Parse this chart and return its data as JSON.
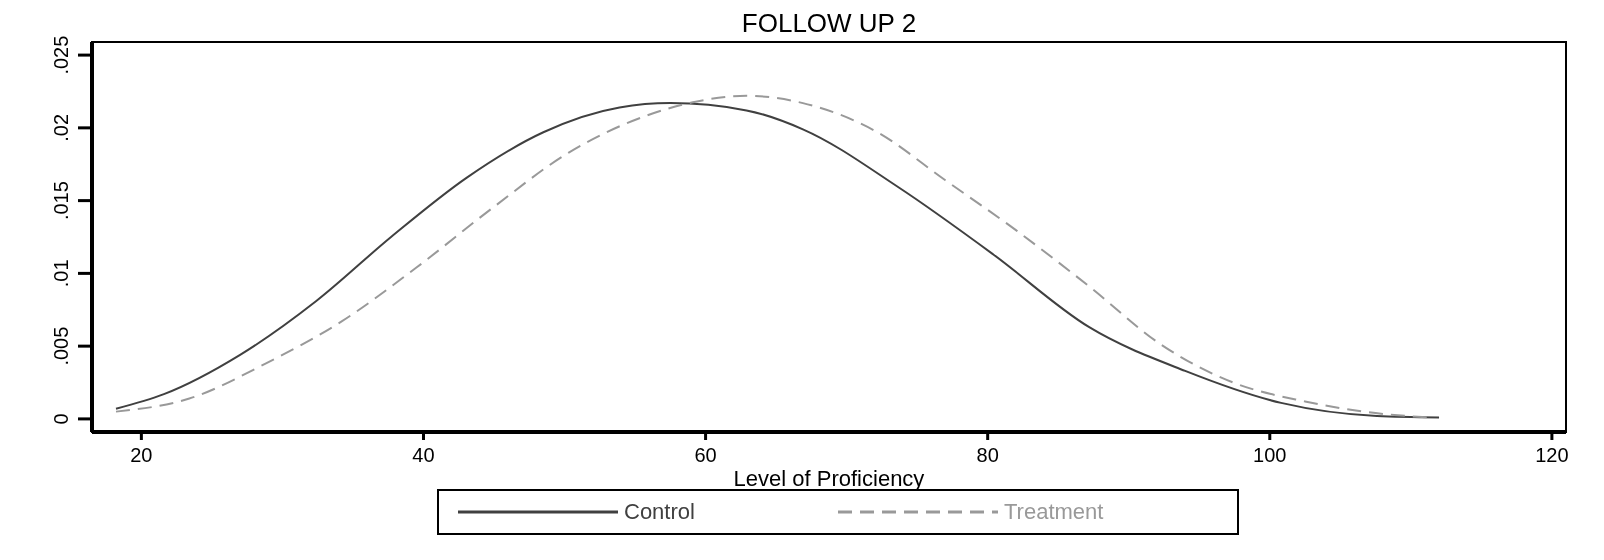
{
  "chart_data": {
    "type": "line",
    "title": "FOLLOW UP 2",
    "xlabel": "Level of Proficiency",
    "xlim": [
      16.5,
      121
    ],
    "xticks": [
      20,
      40,
      60,
      80,
      100,
      120
    ],
    "ylim": [
      -0.0009,
      0.0259
    ],
    "yticks": [
      0,
      {
        "value": 0.005,
        "label": ".005"
      },
      {
        "value": 0.01,
        "label": ".01"
      },
      {
        "value": 0.015,
        "label": ".015"
      },
      {
        "value": 0.02,
        "label": ".02"
      },
      {
        "value": 0.025,
        "label": ".025"
      }
    ],
    "grid": false,
    "legend": "bottom",
    "series": [
      {
        "name": "Control",
        "color": "#404040",
        "line_style": "solid",
        "x": [
          18.2,
          21.6,
          27.0,
          32.4,
          37.7,
          43.1,
          48.5,
          53.9,
          57.5,
          62.9,
          66.9,
          73.7,
          80.4,
          87.2,
          94.0,
          100.8,
          107.6,
          112
        ],
        "values": [
          0.0007,
          0.0017,
          0.0044,
          0.0081,
          0.0125,
          0.0166,
          0.0197,
          0.0214,
          0.0217,
          0.0212,
          0.0199,
          0.0159,
          0.0113,
          0.0063,
          0.0033,
          0.0011,
          0.0002,
          0.0001
        ]
      },
      {
        "name": "Treatment",
        "color": "#999999",
        "line_style": "dashed",
        "x": [
          18.2,
          23.4,
          28.8,
          34.2,
          39.5,
          44.9,
          50.3,
          55.7,
          59.3,
          62.9,
          66.9,
          72.0,
          77.0,
          82.1,
          87.2,
          92.3,
          97.4,
          102.5,
          107.5,
          111.3
        ],
        "values": [
          0.0005,
          0.0014,
          0.0038,
          0.0067,
          0.0104,
          0.0145,
          0.0183,
          0.0208,
          0.0218,
          0.0222,
          0.0217,
          0.0198,
          0.0164,
          0.0129,
          0.0091,
          0.0051,
          0.0025,
          0.0012,
          0.0004,
          0.0001
        ]
      }
    ]
  }
}
